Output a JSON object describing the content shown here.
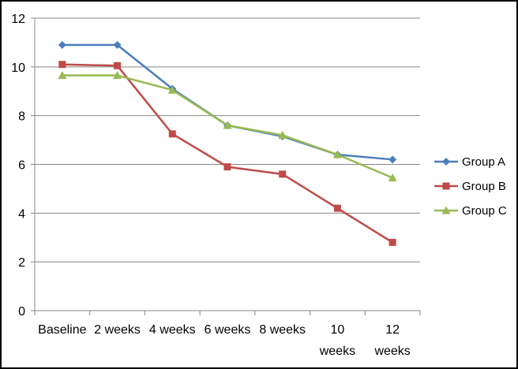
{
  "chart_data": {
    "type": "line",
    "title": "",
    "xlabel": "",
    "ylabel": "",
    "categories": [
      [
        "Baseline"
      ],
      [
        "2 weeks"
      ],
      [
        "4 weeks"
      ],
      [
        "6 weeks"
      ],
      [
        "8 weeks"
      ],
      [
        "10",
        "weeks"
      ],
      [
        "12",
        "weeks"
      ]
    ],
    "ylim": [
      0,
      12
    ],
    "yticks": [
      0,
      2,
      4,
      6,
      8,
      10,
      12
    ],
    "grid": "horizontal",
    "legend_position": "right",
    "series": [
      {
        "name": "Group A",
        "color": "#4a7ebb",
        "marker": "diamond",
        "values": [
          10.9,
          10.9,
          9.1,
          7.6,
          7.15,
          6.4,
          6.2
        ]
      },
      {
        "name": "Group B",
        "color": "#be4b48",
        "marker": "square",
        "values": [
          10.1,
          10.05,
          7.25,
          5.9,
          5.6,
          4.2,
          2.8
        ]
      },
      {
        "name": "Group C",
        "color": "#98b954",
        "marker": "triangle",
        "values": [
          9.65,
          9.65,
          9.05,
          7.6,
          7.2,
          6.4,
          5.45
        ]
      }
    ]
  }
}
